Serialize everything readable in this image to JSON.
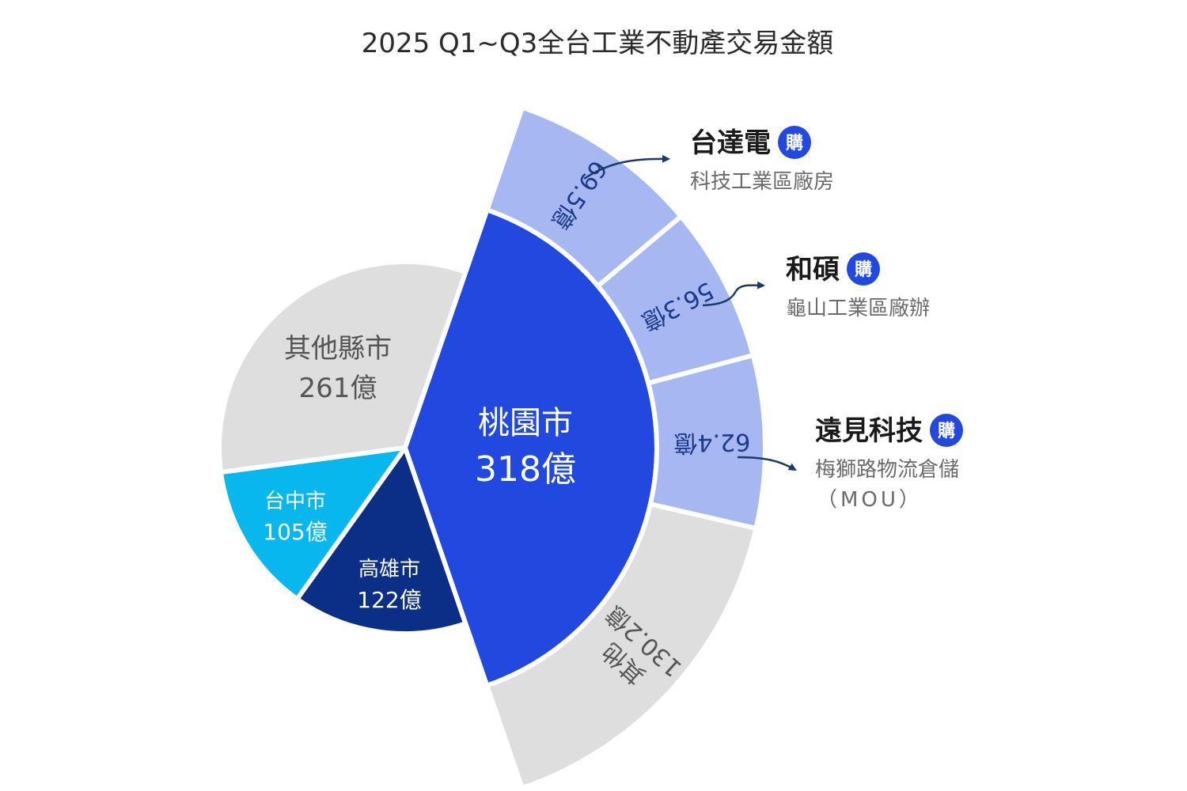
{
  "chart_data": {
    "type": "pie",
    "title": "2025 Q1~Q3全台工業不動產交易金額",
    "unit": "億",
    "inner": {
      "slices": [
        {
          "id": "taoyuan",
          "name": "桃園市",
          "value": 318,
          "value_label": "318億",
          "color": "#2149E0",
          "text_color": "#ffffff"
        },
        {
          "id": "kaohsiung",
          "name": "高雄市",
          "value": 122,
          "value_label": "122億",
          "color": "#0B2F86",
          "text_color": "#ffffff"
        },
        {
          "id": "taichung",
          "name": "台中市",
          "value": 105,
          "value_label": "105億",
          "color": "#07B7EE",
          "text_color": "#ffffff"
        },
        {
          "id": "others",
          "name": "其他縣市",
          "value": 261,
          "value_label": "261億",
          "color": "#DEDEDE",
          "text_color": "#555555"
        }
      ]
    },
    "outer": {
      "parent": "桃園市",
      "slices": [
        {
          "id": "tsmc",
          "value": 69.5,
          "value_label": "69.5億",
          "color": "#A7B7F1",
          "text_color": "#1A3A8C"
        },
        {
          "id": "pega",
          "value": 56.3,
          "value_label": "56.3億",
          "color": "#A7B7F1",
          "text_color": "#1A3A8C"
        },
        {
          "id": "fe",
          "value": 62.4,
          "value_label": "62.4億",
          "color": "#A7B7F1",
          "text_color": "#1A3A8C"
        },
        {
          "id": "other",
          "name": "其他",
          "value": 130.2,
          "value_label": "130.2億",
          "color": "#DEDEDE",
          "text_color": "#555555"
        }
      ]
    },
    "annotations": [
      {
        "target": "tsmc",
        "company": "台達電",
        "badge": "購",
        "desc": "科技工業區廠房"
      },
      {
        "target": "pega",
        "company": "和碩",
        "badge": "購",
        "desc": "龜山工業區廠辦"
      },
      {
        "target": "fe",
        "company": "遠見科技",
        "badge": "購",
        "desc": "梅獅路物流倉儲",
        "desc2": "（MOU）"
      }
    ]
  },
  "colors": {
    "title": "#2b2b2b",
    "badge": "#2149E0",
    "company": "#1a1a1a",
    "desc": "#6b6b6b",
    "arrow": "#1A3A6C"
  }
}
